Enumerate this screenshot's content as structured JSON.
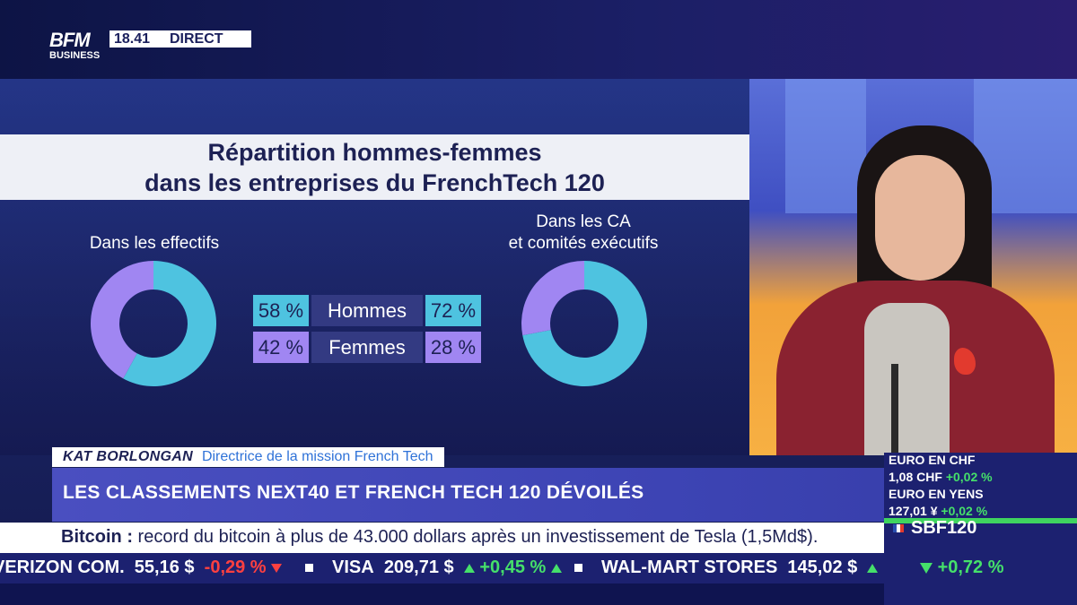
{
  "channel": {
    "logo_top": "BFM",
    "logo_bottom": "BUSINESS",
    "time": "18.41",
    "live_label": "DIRECT"
  },
  "graphic": {
    "title_line1": "Répartition hommes-femmes",
    "title_line2": "dans les entreprises du FrenchTech 120",
    "left_label": "Dans les effectifs",
    "right_label_line1": "Dans les CA",
    "right_label_line2": "et comités exécutifs",
    "rows": [
      {
        "label": "Hommes",
        "left": "58 %",
        "right": "72 %"
      },
      {
        "label": "Femmes",
        "left": "42 %",
        "right": "28 %"
      }
    ],
    "colors": {
      "hommes": "#4ec3e0",
      "femmes": "#a086f2"
    }
  },
  "chart_data": [
    {
      "type": "pie",
      "title": "Dans les effectifs",
      "categories": [
        "Hommes",
        "Femmes"
      ],
      "values": [
        58,
        42
      ]
    },
    {
      "type": "pie",
      "title": "Dans les CA et comités exécutifs",
      "categories": [
        "Hommes",
        "Femmes"
      ],
      "values": [
        72,
        28
      ]
    }
  ],
  "lower_third": {
    "name": "KAT BORLONGAN",
    "role": "Directrice de la mission French Tech",
    "headline": "LES CLASSEMENTS NEXT40 ET FRENCH TECH 120 DÉVOILÉS"
  },
  "ticker": {
    "topic": "Bitcoin :",
    "text": " record du bitcoin à plus de 43.000 dollars après un investissement de Tesla (1,5Md$)."
  },
  "markets": [
    {
      "name": "VERIZON COM.",
      "price": "55,16 $",
      "change": "-0,29 %",
      "direction": "down"
    },
    {
      "name": "VISA",
      "price": "209,71 $",
      "change": "+0,45 %",
      "direction": "up"
    },
    {
      "name": "WAL-MART STORES",
      "price": "145,02 $",
      "change": "",
      "direction": "up"
    }
  ],
  "index_panel": {
    "line1_name": "EURO EN CHF",
    "line1_value": "1,08 CHF",
    "line1_change": "+0,02 %",
    "line2_name": "EURO EN YENS",
    "line2_value": "127,01 ¥",
    "line2_change": "+0,02 %",
    "index_name": "SBF120",
    "index_change": "+0,72 %"
  }
}
